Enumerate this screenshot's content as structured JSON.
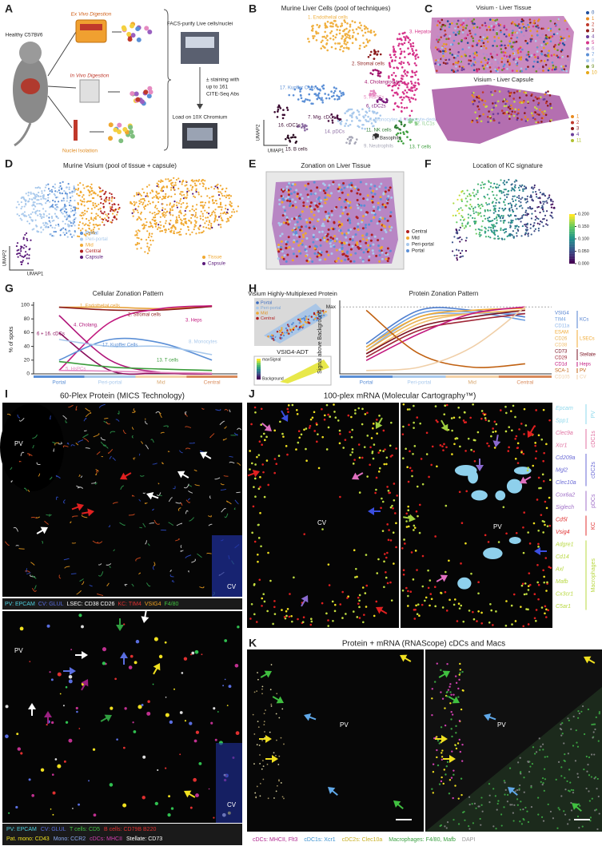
{
  "panel_labels": [
    "A",
    "B",
    "C",
    "D",
    "E",
    "F",
    "G",
    "H",
    "I",
    "J",
    "K"
  ],
  "panel_a": {
    "mouse": "Healthy C57Bl/6",
    "ex_vivo": "Ex Vivo Digestion",
    "in_vivo": "In Vivo Digestion",
    "nuclei": "Nuclei Isolation",
    "facs": "FACS-purify Live cells/nuclei",
    "staining": [
      "± staining with",
      "up to 161",
      "CITE-Seq Abs"
    ],
    "load": "Load on 10X Chromium"
  },
  "panel_b": {
    "title": "Murine Liver Cells (pool of techniques)",
    "clusters": [
      {
        "label": "1. Endothelial cells",
        "color": "#f0b040"
      },
      {
        "label": "2. Stromal cells",
        "color": "#8b1a1a"
      },
      {
        "label": "3. Hepatocytes",
        "color": "#d6338a"
      },
      {
        "label": "4. Cholangiocytes",
        "color": "#a0106a"
      },
      {
        "label": "5. HsPCs",
        "color": "#e58ac1"
      },
      {
        "label": "6. cDC2s",
        "color": "#7a1a7a"
      },
      {
        "label": "7. Mig. cDCs",
        "color": "#4a1040"
      },
      {
        "label": "8. Monocytes & Monocyte-derived cells",
        "color": "#a9c9ec"
      },
      {
        "label": "9. Neutrophils",
        "color": "#a8a8b8"
      },
      {
        "label": "10. Basophils",
        "color": "#303030"
      },
      {
        "label": "11. NK cells",
        "color": "#2e7d32"
      },
      {
        "label": "12. ILC1s",
        "color": "#8fcf8f"
      },
      {
        "label": "13. T cells",
        "color": "#3b9c3b"
      },
      {
        "label": "14. pDCs",
        "color": "#8a6aa0"
      },
      {
        "label": "15. B cells",
        "color": "#2a0a20"
      },
      {
        "label": "16. cDC1s",
        "color": "#3a0a30"
      },
      {
        "label": "17. Kupffer Cells",
        "color": "#5b8fd6"
      }
    ],
    "axis_x": "UMAP1",
    "axis_y": "UMAP2"
  },
  "panel_c": {
    "title_tissue": "Visium - Liver Tissue",
    "legend_tissue": [
      0,
      1,
      2,
      3,
      4,
      5,
      6,
      7,
      8,
      9,
      10
    ],
    "title_capsule": "Visium - Liver Capsule",
    "legend_capsule": [
      1,
      2,
      3,
      4,
      11
    ]
  },
  "panel_d": {
    "title": "Murine Visium (pool of tissue + capsule)",
    "legend_zone": [
      "Portal",
      "Peri-portal",
      "Mid",
      "Central",
      "Capsule"
    ],
    "legend_source": [
      "Tissue",
      "Capsule"
    ],
    "axis_x": "UMAP1",
    "axis_y": "UMAP2"
  },
  "panel_e": {
    "title": "Zonation on Liver Tissue",
    "legend": [
      "Central",
      "Mid",
      "Peri-portal",
      "Portal"
    ]
  },
  "panel_f": {
    "title": "Location of KC signature",
    "colorbar_ticks": [
      {
        "value": 0,
        "label": "0.000"
      },
      {
        "value": 0.05,
        "label": "0.050"
      },
      {
        "value": 0.1,
        "label": "0.100"
      },
      {
        "value": 0.15,
        "label": "0.150"
      },
      {
        "value": 0.2,
        "label": "0.200"
      }
    ],
    "colorbar_lim": [
      0,
      0.2
    ]
  },
  "panel_g": {
    "type": "line",
    "title": "Cellular Zonation Pattern",
    "y_label": "% of spots",
    "categories": [
      "Portal",
      "Peri-portal",
      "Mid",
      "Central"
    ],
    "ylim": [
      0,
      100
    ],
    "yticks": [
      0,
      20,
      40,
      60,
      80,
      100
    ],
    "series": [
      {
        "name": "1. Endothelial cells",
        "color": "#e8a33d",
        "values": [
          97,
          97,
          95,
          99
        ]
      },
      {
        "name": "2. Stromal cells",
        "color": "#8b1a1a",
        "values": [
          97,
          93,
          93,
          98
        ]
      },
      {
        "name": "3. Heps",
        "color": "#c2187e",
        "values": [
          5,
          75,
          95,
          99
        ]
      },
      {
        "name": "4. Cholang.",
        "color": "#b0167a",
        "values": [
          85,
          20,
          2,
          0
        ]
      },
      {
        "name": "6 + 16. cDCs",
        "color": "#8a0f5c",
        "values": [
          60,
          5,
          1,
          0
        ]
      },
      {
        "name": "17. Kupffer Cells",
        "color": "#5b8fd6",
        "values": [
          20,
          50,
          45,
          20
        ]
      },
      {
        "name": "8. Monocytes",
        "color": "#a9c9ec",
        "values": [
          50,
          40,
          40,
          28
        ]
      },
      {
        "name": "13. T cells",
        "color": "#3b9c3b",
        "values": [
          18,
          10,
          7,
          5
        ]
      },
      {
        "name": "5. HsPCs",
        "color": "#e58ac1",
        "values": [
          5,
          4,
          2,
          1
        ]
      }
    ]
  },
  "panel_h": {
    "multiplex_title": "Visium Highly-Multiplexed Protein",
    "multiplex_legend": [
      "Portal",
      "Peri-portal",
      "Mid",
      "Central"
    ],
    "adt_title": "VSIG4-ADT",
    "adt_max": "maxSignal",
    "adt_min": "Background",
    "chart": {
      "type": "line",
      "title": "Protein Zonation Pattern",
      "y_label": "Signal above Background",
      "categories": [
        "Portal",
        "Peri-portal",
        "Mid",
        "Central"
      ],
      "ylim": [
        0,
        1.05
      ],
      "yticks": [
        {
          "value": 1,
          "label": "Max"
        }
      ],
      "groups": [
        {
          "name": "KCs",
          "series": [
            {
              "name": "VSIG4",
              "color": "#4f7fd0",
              "values": [
                0.45,
                0.95,
                0.95,
                0.85
              ]
            },
            {
              "name": "TIM4",
              "color": "#6f9fe0",
              "values": [
                0.4,
                0.9,
                0.92,
                0.8
              ]
            },
            {
              "name": "CD11a",
              "color": "#8bb4ea",
              "values": [
                0.35,
                0.85,
                0.9,
                0.9
              ]
            }
          ]
        },
        {
          "name": "LSECs",
          "series": [
            {
              "name": "ESAM",
              "color": "#f0a830",
              "values": [
                0.4,
                0.85,
                0.95,
                0.98
              ]
            },
            {
              "name": "CD26",
              "color": "#e8b050",
              "values": [
                0.35,
                0.8,
                0.9,
                0.95
              ]
            },
            {
              "name": "CD38",
              "color": "#f2c070",
              "values": [
                0.3,
                0.75,
                0.9,
                0.95
              ]
            }
          ]
        },
        {
          "name": "Stellate",
          "series": [
            {
              "name": "CD73",
              "color": "#7a1020",
              "values": [
                0.3,
                0.7,
                0.85,
                0.95
              ]
            },
            {
              "name": "CD29",
              "color": "#a02838",
              "values": [
                0.25,
                0.65,
                0.8,
                0.9
              ]
            }
          ]
        },
        {
          "name": "Heps",
          "series": [
            {
              "name": "CD1d",
              "color": "#c2187e",
              "values": [
                0.2,
                0.6,
                0.9,
                1.0
              ]
            }
          ]
        },
        {
          "name": "PV",
          "series": [
            {
              "name": "SCA-1",
              "color": "#c06010",
              "values": [
                0.95,
                0.3,
                0.1,
                0.15
              ]
            }
          ]
        },
        {
          "name": "CV",
          "series": [
            {
              "name": "CD105",
              "color": "#f0cfa8",
              "values": [
                0.05,
                0.1,
                0.4,
                1.0
              ]
            }
          ]
        }
      ]
    }
  },
  "panel_i": {
    "title": "60-Plex Protein (MICS Technology)",
    "pv": "PV",
    "cv": "CV",
    "caption_top": [
      "PV: EPCAM",
      "CV: GLUL",
      "LSEC: CD38 CD26",
      "KC: TIM4",
      "VSIG4",
      "F4/80"
    ],
    "caption_bottom": [
      [
        "PV: EPCAM",
        "CV: GLUL",
        "T cells: CD5",
        "B cells: CD79B B220"
      ],
      [
        "Pat. mono: CD43",
        "Mono: CCR2",
        "cDCs: MHCII",
        "Stellate: CD73"
      ]
    ]
  },
  "panel_j": {
    "title": "100-plex mRNA (Molecular Cartography™)",
    "cv": "CV",
    "pv": "PV",
    "legend": [
      {
        "group": "PV",
        "genes": [
          "Epcam",
          "Spp1"
        ]
      },
      {
        "group": "cDC1s",
        "genes": [
          "Clec9a",
          "Xcr1"
        ]
      },
      {
        "group": "cDC2s",
        "genes": [
          "Cd209a",
          "Mgl2",
          "Clec10a"
        ]
      },
      {
        "group": "pDCs",
        "genes": [
          "Cox6a2",
          "Siglech"
        ]
      },
      {
        "group": "KC",
        "genes": [
          "Cd5l",
          "Vsig4"
        ]
      },
      {
        "group": "Macrophages",
        "genes": [
          "Adgre1",
          "Cd14",
          "Axl",
          "Mafb",
          "Cx3cr1",
          "C5ar1"
        ]
      }
    ]
  },
  "panel_k": {
    "title": "Protein + mRNA (RNAScope) cDCs and Macs",
    "pv": "PV",
    "caption": [
      "cDCs: MHCII, Flt3",
      "cDC1s: Xcr1",
      "cDC2s: Clec10a",
      "Macrophages: F4/80, Mafb",
      "DAPI"
    ]
  }
}
